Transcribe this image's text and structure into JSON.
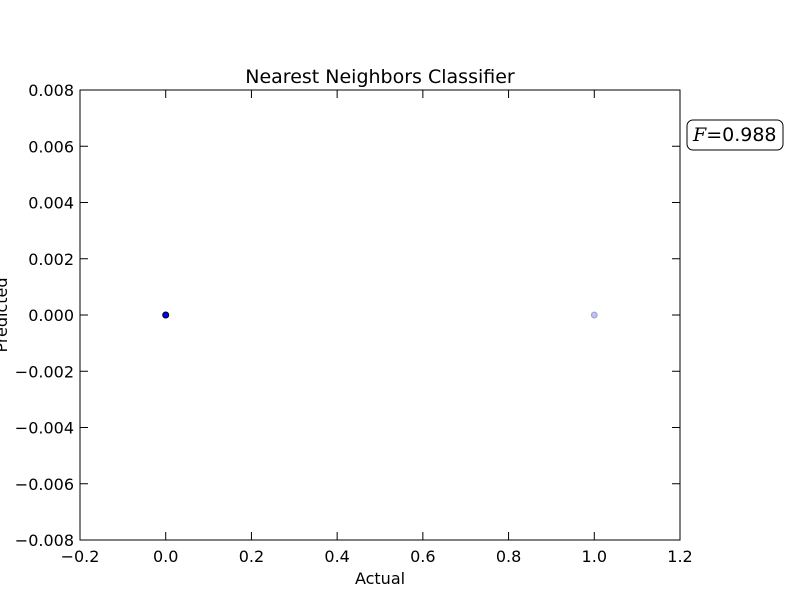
{
  "chart_data": {
    "type": "scatter",
    "title": "Nearest Neighbors Classifier",
    "xlabel": "Actual",
    "ylabel": "Predicted",
    "xlim": [
      -0.2,
      1.2
    ],
    "ylim": [
      -0.008,
      0.008
    ],
    "xticks": [
      "−0.2",
      "0.0",
      "0.2",
      "0.4",
      "0.6",
      "0.8",
      "1.0",
      "1.2"
    ],
    "xtick_values": [
      -0.2,
      0.0,
      0.2,
      0.4,
      0.6,
      0.8,
      1.0,
      1.2
    ],
    "yticks": [
      "0.008",
      "0.006",
      "0.004",
      "0.002",
      "0.000",
      "−0.002",
      "−0.004",
      "−0.006",
      "−0.008"
    ],
    "ytick_values": [
      0.008,
      0.006,
      0.004,
      0.002,
      0.0,
      -0.002,
      -0.004,
      -0.006,
      -0.008
    ],
    "grid": false,
    "series": [
      {
        "points": [
          {
            "x": 0.0,
            "y": 0.0,
            "alpha": 1.0
          },
          {
            "x": 1.0,
            "y": 0.0,
            "alpha": 0.25
          }
        ],
        "color": "#0000ff"
      }
    ],
    "annotation": {
      "symbol": "F",
      "text": "=0.988"
    }
  }
}
